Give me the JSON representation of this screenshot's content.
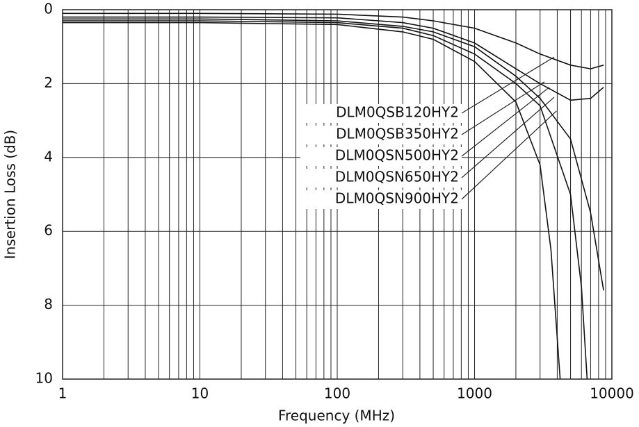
{
  "chart_data": {
    "type": "line",
    "x_label": "Frequency (MHz)",
    "y_label": "Insertion Loss (dB)",
    "xlim": [
      1,
      10000
    ],
    "xticks": [
      1,
      10,
      100,
      1000,
      10000
    ],
    "x_log": true,
    "ylim": [
      0,
      10
    ],
    "yticks": [
      0,
      2,
      4,
      6,
      8,
      10
    ],
    "y_inverted": true,
    "grid": true,
    "series": [
      {
        "name": "DLM0QSB120HY2",
        "color": "#111111",
        "x": [
          1,
          10,
          100,
          300,
          500,
          1000,
          2000,
          3000,
          5000,
          7000,
          8700
        ],
        "values": [
          0.1,
          0.1,
          0.12,
          0.2,
          0.3,
          0.5,
          0.9,
          1.2,
          1.5,
          1.6,
          1.5
        ]
      },
      {
        "name": "DLM0QSB350HY2",
        "color": "#111111",
        "x": [
          1,
          10,
          100,
          300,
          500,
          1000,
          2000,
          3000,
          5000,
          7000,
          8700
        ],
        "values": [
          0.2,
          0.2,
          0.22,
          0.35,
          0.5,
          0.9,
          1.6,
          2.0,
          2.45,
          2.4,
          2.1
        ]
      },
      {
        "name": "DLM0QSN500HY2",
        "color": "#111111",
        "x": [
          1,
          10,
          100,
          300,
          500,
          1000,
          2000,
          3000,
          5000,
          7000,
          8700
        ],
        "values": [
          0.25,
          0.25,
          0.3,
          0.45,
          0.6,
          1.0,
          1.8,
          2.4,
          3.5,
          5.5,
          7.6
        ]
      },
      {
        "name": "DLM0QSN650HY2",
        "color": "#111111",
        "x": [
          1,
          10,
          100,
          300,
          500,
          1000,
          2000,
          3000,
          5000,
          6000,
          6600
        ],
        "values": [
          0.3,
          0.3,
          0.35,
          0.5,
          0.7,
          1.2,
          2.0,
          2.6,
          5.0,
          7.5,
          10
        ]
      },
      {
        "name": "DLM0QSN900HY2",
        "color": "#111111",
        "x": [
          1,
          10,
          100,
          300,
          500,
          1000,
          2000,
          3000,
          3600,
          4200
        ],
        "values": [
          0.35,
          0.35,
          0.4,
          0.6,
          0.8,
          1.4,
          2.5,
          4.2,
          6.5,
          10
        ]
      }
    ],
    "annotations": [
      {
        "text": "DLM0QSB120HY2",
        "x": 3800,
        "y": 1.28
      },
      {
        "text": "DLM0QSB350HY2",
        "x": 3230,
        "y": 1.95
      },
      {
        "text": "DLM0QSN500HY2",
        "x": 3500,
        "y": 2.1
      },
      {
        "text": "DLM0QSN650HY2",
        "x": 3800,
        "y": 2.37
      },
      {
        "text": "DLM0QSN900HY2",
        "x": 3950,
        "y": 2.74
      }
    ]
  }
}
